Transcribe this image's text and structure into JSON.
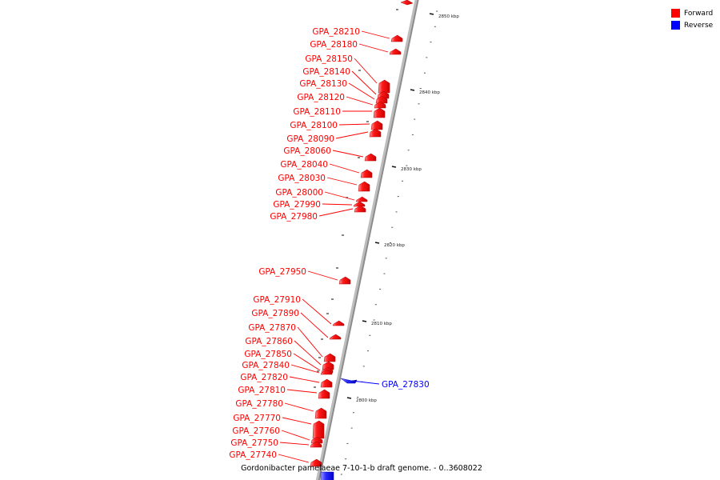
{
  "legend": {
    "forward_label": "Forward",
    "reverse_label": "Reverse",
    "forward_color": "#ff0000",
    "reverse_color": "#0000ff"
  },
  "caption": "Gordonibacter pamelaeae 7-10-1-b draft genome. - 0..3608022",
  "ticks": [
    "2850 kbp",
    "2840 kbp",
    "2830 kbp",
    "2820 kbp",
    "2810 kbp",
    "2800 kbp"
  ],
  "genes": [
    {
      "id": "GPA_28210",
      "strand": "forward"
    },
    {
      "id": "GPA_28180",
      "strand": "forward"
    },
    {
      "id": "GPA_28150",
      "strand": "forward"
    },
    {
      "id": "GPA_28140",
      "strand": "forward"
    },
    {
      "id": "GPA_28130",
      "strand": "forward"
    },
    {
      "id": "GPA_28120",
      "strand": "forward"
    },
    {
      "id": "GPA_28110",
      "strand": "forward"
    },
    {
      "id": "GPA_28100",
      "strand": "forward"
    },
    {
      "id": "GPA_28090",
      "strand": "forward"
    },
    {
      "id": "GPA_28060",
      "strand": "forward"
    },
    {
      "id": "GPA_28040",
      "strand": "forward"
    },
    {
      "id": "GPA_28030",
      "strand": "forward"
    },
    {
      "id": "GPA_28000",
      "strand": "forward"
    },
    {
      "id": "GPA_27990",
      "strand": "forward"
    },
    {
      "id": "GPA_27980",
      "strand": "forward"
    },
    {
      "id": "GPA_27950",
      "strand": "forward"
    },
    {
      "id": "GPA_27910",
      "strand": "forward"
    },
    {
      "id": "GPA_27890",
      "strand": "forward"
    },
    {
      "id": "GPA_27870",
      "strand": "forward"
    },
    {
      "id": "GPA_27860",
      "strand": "forward"
    },
    {
      "id": "GPA_27850",
      "strand": "forward"
    },
    {
      "id": "GPA_27840",
      "strand": "forward"
    },
    {
      "id": "GPA_27820",
      "strand": "forward"
    },
    {
      "id": "GPA_27810",
      "strand": "forward"
    },
    {
      "id": "GPA_27780",
      "strand": "forward"
    },
    {
      "id": "GPA_27770",
      "strand": "forward"
    },
    {
      "id": "GPA_27760",
      "strand": "forward"
    },
    {
      "id": "GPA_27750",
      "strand": "forward"
    },
    {
      "id": "GPA_27740",
      "strand": "forward"
    },
    {
      "id": "GPA_27830",
      "strand": "reverse"
    }
  ]
}
